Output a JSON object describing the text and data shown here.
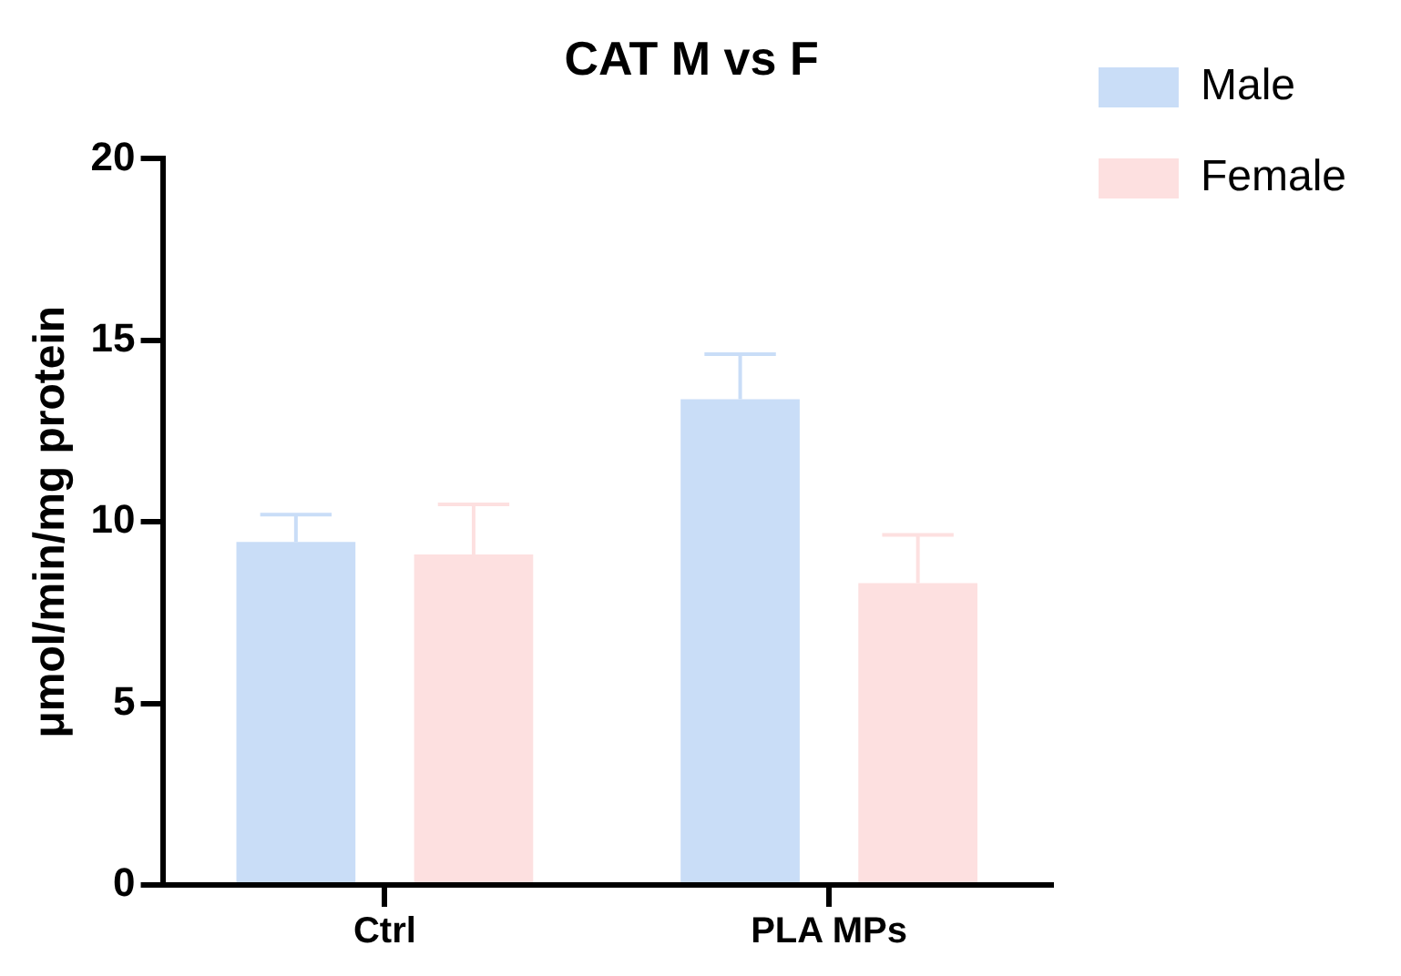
{
  "chart_data": {
    "type": "bar",
    "title": "CAT M vs F",
    "ylabel": "μmol/min/mg protein",
    "categories": [
      "Ctrl",
      "PLA MPs"
    ],
    "series": [
      {
        "name": "Male",
        "color": "#c9ddf7",
        "values": [
          9.45,
          13.38
        ],
        "errors": [
          [
            9.45,
            10.2
          ],
          [
            13.38,
            14.62
          ]
        ]
      },
      {
        "name": "Female",
        "color": "#fde0e0",
        "values": [
          9.1,
          8.31
        ],
        "errors": [
          [
            9.1,
            10.48
          ],
          [
            8.31,
            9.64
          ]
        ]
      }
    ],
    "ylim": [
      0,
      20
    ],
    "yticks": [
      0,
      5,
      10,
      15,
      20
    ],
    "grid": false,
    "legend": "top right"
  }
}
